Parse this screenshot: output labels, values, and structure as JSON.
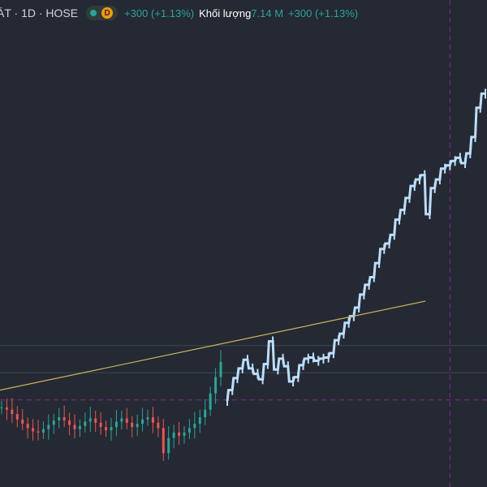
{
  "legend": {
    "title": "ÁT · 1D · HOSE",
    "interval_badge": "D",
    "change": "+300 (+1.13%)",
    "volume_label": "Khối lượng",
    "volume_value": "7.14 M",
    "volume_change": "+300 (+1.13%)"
  },
  "colors": {
    "background": "#252933",
    "up": "#26a69a",
    "down": "#ef5350",
    "line_series": "#bbdefb",
    "trendline": "#c8b560",
    "badge": "#ff9800",
    "live_dot": "#26a69a",
    "crosshair": "#9c27b0",
    "hline": "#3d5a5a"
  },
  "icons": {
    "status": "live-dot-icon",
    "interval": "interval-d-badge"
  },
  "chart_data": {
    "type": "line",
    "series": [
      {
        "style": "candlestick",
        "values": [
          34.2,
          34.0,
          33.6,
          33.1,
          32.7,
          32.3,
          32.0,
          31.9,
          32.2,
          32.6,
          33.0,
          33.3,
          33.0,
          32.6,
          32.2,
          32.5,
          32.9,
          33.2,
          32.8,
          32.4,
          32.1,
          32.4,
          32.9,
          33.2,
          32.8,
          32.4,
          32.7,
          33.1,
          33.3,
          32.8,
          32.3,
          30.0,
          31.4,
          31.9,
          31.6,
          31.9,
          32.3,
          32.7,
          33.3,
          34.0,
          35.5,
          37.0,
          38.4
        ]
      },
      {
        "style": "line",
        "values": [
          34.8,
          35.8,
          36.9,
          37.8,
          38.6,
          37.8,
          37.3,
          36.8,
          38.2,
          40.3,
          37.7,
          38.7,
          38.0,
          36.6,
          37.0,
          38.1,
          38.7,
          38.8,
          38.5,
          38.7,
          38.8,
          39.2,
          40.4,
          41.0,
          42.0,
          42.6,
          43.4,
          44.6,
          45.5,
          46.2,
          47.5,
          48.8,
          49.3,
          50.1,
          51.5,
          52.4,
          53.5,
          54.6,
          55.2,
          55.6,
          52.0,
          54.4,
          55.2,
          56.2,
          56.5,
          56.9,
          57.2,
          56.7,
          57.6,
          59.1,
          61.8,
          63.1
        ]
      }
    ],
    "trendline": {
      "x": [
        0,
        52
      ],
      "y": [
        35.8,
        44.0
      ]
    },
    "horizontal_levels": [
      39.9,
      37.4,
      34.9
    ],
    "crosshair_x": 44
  }
}
